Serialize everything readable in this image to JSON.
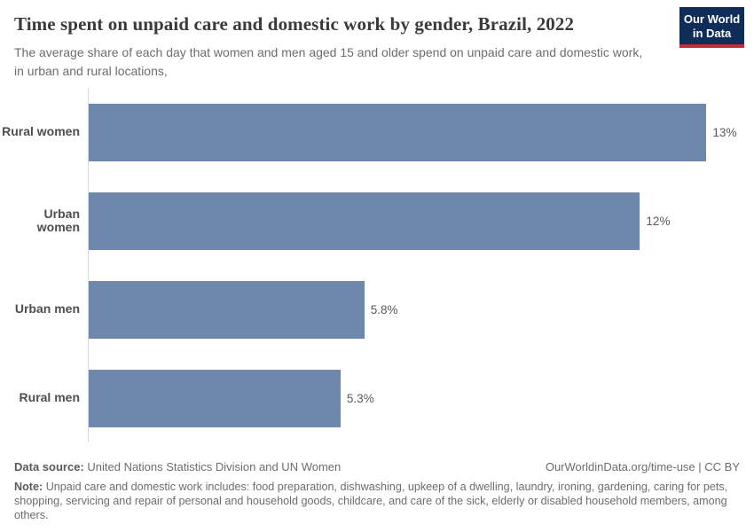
{
  "header": {
    "title": "Time spent on unpaid care and domestic work by gender, Brazil, 2022",
    "subtitle": "The average share of each day that women and men aged 15 and older spend on unpaid care and domestic work, in urban and rural locations,",
    "logo": {
      "line1": "Our World",
      "line2": "in Data",
      "bg_color": "#102d5a",
      "accent_color": "#c52c35"
    }
  },
  "chart_data": {
    "type": "bar",
    "orientation": "horizontal",
    "title": "Time spent on unpaid care and domestic work by gender, Brazil, 2022",
    "categories": [
      "Rural women",
      "Urban women",
      "Urban men",
      "Rural men"
    ],
    "values": [
      13,
      11.6,
      5.8,
      5.3
    ],
    "value_labels": [
      "13%",
      "12%",
      "5.8%",
      "5.3%"
    ],
    "xlabel": "",
    "ylabel": "",
    "xlim": [
      0,
      14
    ],
    "grid": false,
    "legend": false,
    "bar_color": "#6d87ad",
    "axis_line_color": "#d9d9d9"
  },
  "footer": {
    "data_source_label": "Data source:",
    "data_source": "United Nations Statistics Division and UN Women",
    "credit": "OurWorldinData.org/time-use | CC BY",
    "note_label": "Note:",
    "note": "Unpaid care and domestic work includes: food preparation, dishwashing, upkeep of a dwelling, laundry, ironing, gardening, caring for pets, shopping, servicing and repair of personal and household goods, childcare, and care of the sick, elderly or disabled household members, among others."
  }
}
